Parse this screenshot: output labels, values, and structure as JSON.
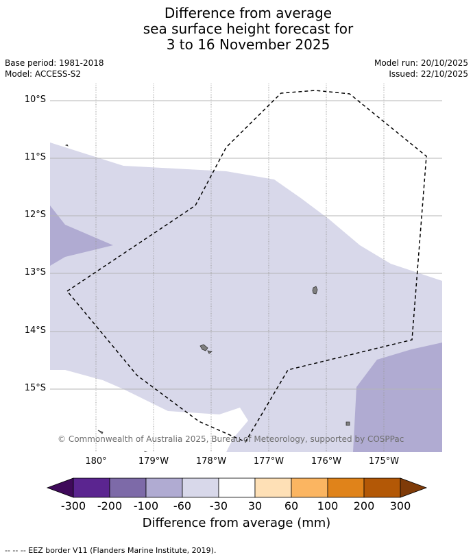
{
  "title": {
    "line1": "Difference from average",
    "line2": "sea surface height forecast for",
    "line3": "3 to 16 November 2025"
  },
  "meta": {
    "base_period": "Base period: 1981-2018",
    "model": "Model: ACCESS-S2",
    "model_run": "Model run: 20/10/2025",
    "issued": "Issued: 22/10/2025"
  },
  "map": {
    "lat_labels": [
      "10°S",
      "11°S",
      "12°S",
      "13°S",
      "14°S",
      "15°S"
    ],
    "lon_labels": [
      "180°",
      "179°W",
      "178°W",
      "177°W",
      "176°W",
      "175°W"
    ],
    "copyright": "© Commonwealth of Australia 2025, Bureau of Meteorology, supported by COSPPac",
    "colors": {
      "grid": "#b5b5b5",
      "land": "#7f7f7f",
      "eez_line": "#000000"
    }
  },
  "colorbar": {
    "ticks": [
      "-300",
      "-200",
      "-100",
      "-60",
      "-30",
      "30",
      "60",
      "100",
      "200",
      "300"
    ],
    "colors": [
      "#3f0a5a",
      "#5b2590",
      "#7d6aa8",
      "#b0abd2",
      "#d8d8ea",
      "#ffffff",
      "#fee0b6",
      "#fbb561",
      "#e0831a",
      "#b35806",
      "#7f3b08"
    ],
    "label": "Difference from average (mm)"
  },
  "legend": {
    "text": "-- -- -- EEZ border V11 (Flanders Marine Institute, 2019)."
  }
}
